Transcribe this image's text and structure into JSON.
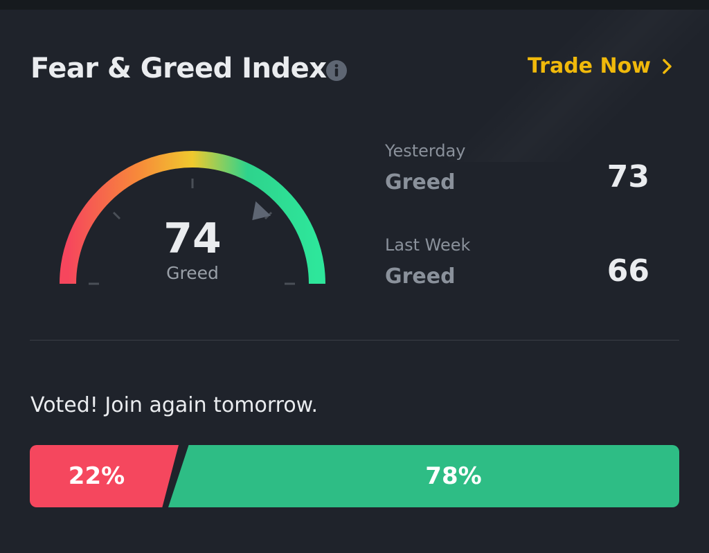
{
  "header": {
    "title": "Fear & Greed Index",
    "trade_label": "Trade Now"
  },
  "gauge": {
    "value": "74",
    "label": "Greed",
    "needle_value": 74,
    "min": 0,
    "max": 100
  },
  "history": [
    {
      "label": "Yesterday",
      "status": "Greed",
      "value": "73"
    },
    {
      "label": "Last Week",
      "status": "Greed",
      "value": "66"
    }
  ],
  "vote": {
    "message": "Voted! Join again tomorrow.",
    "fear_percent": "22%",
    "greed_percent": "78%",
    "fear_fraction": 0.22,
    "greed_fraction": 0.78
  },
  "colors": {
    "accent": "#f0b90b",
    "fear": "#f5475e",
    "greed": "#2ebd85",
    "background": "#1f232b"
  },
  "icons": [
    "info-icon",
    "chevron-right-icon"
  ]
}
